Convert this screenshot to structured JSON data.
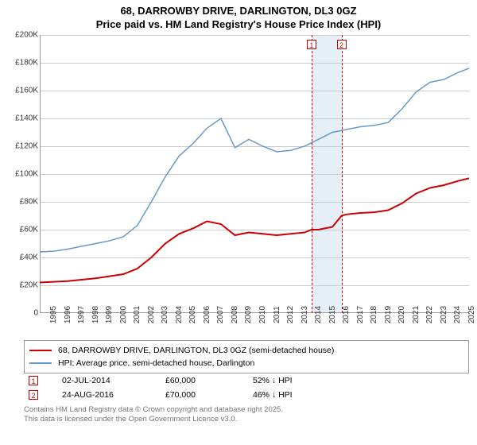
{
  "title": {
    "line1": "68, DARROWBY DRIVE, DARLINGTON, DL3 0GZ",
    "line2": "Price paid vs. HM Land Registry's House Price Index (HPI)"
  },
  "chart": {
    "type": "line",
    "background_color": "#ffffff",
    "grid_color": "#cccccc",
    "x_years": [
      1995,
      1996,
      1997,
      1998,
      1999,
      2000,
      2001,
      2002,
      2003,
      2004,
      2005,
      2006,
      2007,
      2008,
      2009,
      2010,
      2011,
      2012,
      2013,
      2014,
      2015,
      2016,
      2017,
      2018,
      2019,
      2020,
      2021,
      2022,
      2023,
      2024,
      2025
    ],
    "xlim": [
      1995,
      2025.8
    ],
    "ylim": [
      0,
      200000
    ],
    "ytick_step": 20000,
    "ytick_labels": [
      "0",
      "£20K",
      "£40K",
      "£60K",
      "£80K",
      "£100K",
      "£120K",
      "£140K",
      "£160K",
      "£180K",
      "£200K"
    ],
    "marker_band": {
      "start": 2014.5,
      "end": 2016.65,
      "color": "#e6eef7"
    },
    "markers": [
      {
        "label": "1",
        "x": 2014.5
      },
      {
        "label": "2",
        "x": 2016.65
      }
    ],
    "series": [
      {
        "name": "price_paid",
        "label": "68, DARROWBY DRIVE, DARLINGTON, DL3 0GZ (semi-detached house)",
        "color": "#cc0000",
        "line_width": 2,
        "points": [
          [
            1995,
            22000
          ],
          [
            1996,
            22500
          ],
          [
            1997,
            23000
          ],
          [
            1998,
            24000
          ],
          [
            1999,
            25000
          ],
          [
            2000,
            26500
          ],
          [
            2001,
            28000
          ],
          [
            2002,
            32000
          ],
          [
            2003,
            40000
          ],
          [
            2004,
            50000
          ],
          [
            2005,
            57000
          ],
          [
            2006,
            61000
          ],
          [
            2007,
            66000
          ],
          [
            2008,
            64000
          ],
          [
            2009,
            56000
          ],
          [
            2010,
            58000
          ],
          [
            2011,
            57000
          ],
          [
            2012,
            56000
          ],
          [
            2013,
            57000
          ],
          [
            2014,
            58000
          ],
          [
            2014.5,
            60000
          ],
          [
            2015,
            60000
          ],
          [
            2016,
            62000
          ],
          [
            2016.65,
            70000
          ],
          [
            2017,
            71000
          ],
          [
            2018,
            72000
          ],
          [
            2019,
            72500
          ],
          [
            2020,
            74000
          ],
          [
            2021,
            79000
          ],
          [
            2022,
            86000
          ],
          [
            2023,
            90000
          ],
          [
            2024,
            92000
          ],
          [
            2025,
            95000
          ],
          [
            2025.8,
            97000
          ]
        ]
      },
      {
        "name": "hpi",
        "label": "HPI: Average price, semi-detached house, Darlington",
        "color": "#6699cc",
        "line_width": 1.5,
        "points": [
          [
            1995,
            44000
          ],
          [
            1996,
            44500
          ],
          [
            1997,
            46000
          ],
          [
            1998,
            48000
          ],
          [
            1999,
            50000
          ],
          [
            2000,
            52000
          ],
          [
            2001,
            55000
          ],
          [
            2002,
            63000
          ],
          [
            2003,
            80000
          ],
          [
            2004,
            98000
          ],
          [
            2005,
            113000
          ],
          [
            2006,
            122000
          ],
          [
            2007,
            133000
          ],
          [
            2008,
            140000
          ],
          [
            2009,
            119000
          ],
          [
            2010,
            125000
          ],
          [
            2011,
            120000
          ],
          [
            2012,
            116000
          ],
          [
            2013,
            117000
          ],
          [
            2014,
            120000
          ],
          [
            2015,
            125000
          ],
          [
            2016,
            130000
          ],
          [
            2017,
            132000
          ],
          [
            2018,
            134000
          ],
          [
            2019,
            135000
          ],
          [
            2020,
            137000
          ],
          [
            2021,
            147000
          ],
          [
            2022,
            159000
          ],
          [
            2023,
            166000
          ],
          [
            2024,
            168000
          ],
          [
            2025,
            173000
          ],
          [
            2025.8,
            176000
          ]
        ]
      }
    ]
  },
  "legend": {
    "rows": [
      {
        "color": "#cc0000",
        "width": 2,
        "label": "68, DARROWBY DRIVE, DARLINGTON, DL3 0GZ (semi-detached house)"
      },
      {
        "color": "#6699cc",
        "width": 1.5,
        "label": "HPI: Average price, semi-detached house, Darlington"
      }
    ]
  },
  "info_rows": [
    {
      "marker": "1",
      "date": "02-JUL-2014",
      "price": "£60,000",
      "diff": "52% ↓ HPI"
    },
    {
      "marker": "2",
      "date": "24-AUG-2016",
      "price": "£70,000",
      "diff": "46% ↓ HPI"
    }
  ],
  "footer": {
    "line1": "Contains HM Land Registry data © Crown copyright and database right 2025.",
    "line2": "This data is licensed under the Open Government Licence v3.0."
  }
}
